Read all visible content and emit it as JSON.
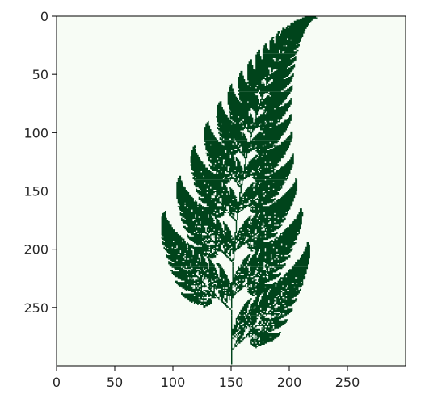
{
  "figure": {
    "image": "barnsley-fern",
    "background_color": "#f7fcf5",
    "fern_color": "#00441b",
    "axes_color": "#000000",
    "image_extent": {
      "x": [
        0,
        300
      ],
      "y": [
        0,
        300
      ]
    },
    "x_ticks": [
      {
        "value": 0,
        "label": "0"
      },
      {
        "value": 50,
        "label": "50"
      },
      {
        "value": 100,
        "label": "100"
      },
      {
        "value": 150,
        "label": "150"
      },
      {
        "value": 200,
        "label": "200"
      },
      {
        "value": 250,
        "label": "250"
      }
    ],
    "y_ticks": [
      {
        "value": 0,
        "label": "0"
      },
      {
        "value": 50,
        "label": "50"
      },
      {
        "value": 100,
        "label": "100"
      },
      {
        "value": 150,
        "label": "150"
      },
      {
        "value": 200,
        "label": "200"
      },
      {
        "value": 250,
        "label": "250"
      }
    ]
  }
}
